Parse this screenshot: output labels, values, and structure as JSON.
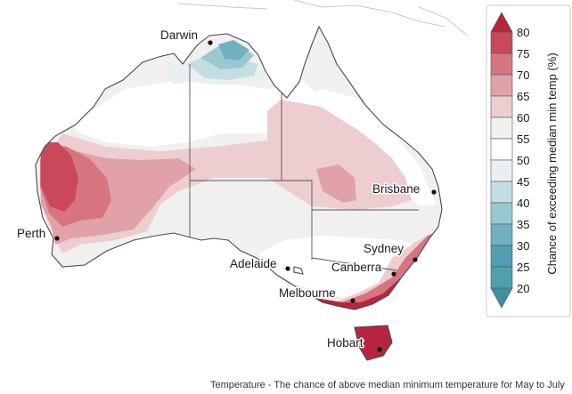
{
  "colors": {
    "c80": "#b5263e",
    "c75": "#c9495b",
    "c70": "#d67580",
    "c65": "#e0a2a8",
    "c60": "#edcdd0",
    "c55": "#f1f0ef",
    "c50": "#ffffff",
    "c45": "#e9f0f2",
    "c40": "#c4dde2",
    "c35": "#9ac7d0",
    "c30": "#6fb1bf",
    "c25": "#4f9fb0",
    "c20": "#3d90a3"
  },
  "legend": {
    "title": "Chance of exceeding median min temp (%)",
    "ticks": [
      "80",
      "75",
      "70",
      "65",
      "60",
      "55",
      "50",
      "45",
      "40",
      "35",
      "30",
      "25",
      "20"
    ]
  },
  "cities": [
    {
      "id": "darwin",
      "name": "Darwin"
    },
    {
      "id": "brisbane",
      "name": "Brisbane"
    },
    {
      "id": "perth",
      "name": "Perth"
    },
    {
      "id": "adelaide",
      "name": "Adelaide"
    },
    {
      "id": "sydney",
      "name": "Sydney"
    },
    {
      "id": "canberra",
      "name": "Canberra"
    },
    {
      "id": "melbourne",
      "name": "Melbourne"
    },
    {
      "id": "hobart",
      "name": "Hobart"
    }
  ],
  "caption": "Temperature - The chance of above median minimum temperature for May to July"
}
